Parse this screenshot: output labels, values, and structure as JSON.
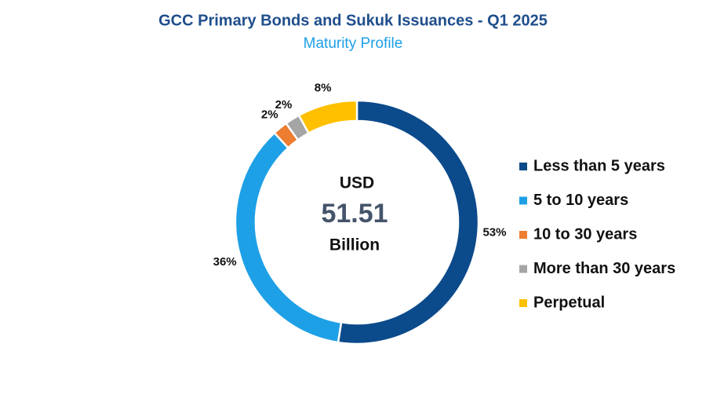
{
  "chart_data": {
    "type": "donut",
    "title": "GCC Primary Bonds and Sukuk Issuances - Q1 2025",
    "subtitle": "Maturity Profile",
    "center_text": {
      "top": "USD",
      "value": 51.51,
      "bottom": "Billion"
    },
    "categories": [
      "Less than 5 years",
      "5 to 10 years",
      "10 to 30 years",
      "More than 30 years",
      "Perpetual"
    ],
    "values": [
      53,
      36,
      2,
      2,
      8
    ],
    "value_labels": [
      "53%",
      "36%",
      "2%",
      "2%",
      "8%"
    ],
    "colors": [
      "#0b4a8b",
      "#1ea0e6",
      "#ed7d31",
      "#a5a5a5",
      "#ffc000"
    ],
    "legend": "right"
  }
}
